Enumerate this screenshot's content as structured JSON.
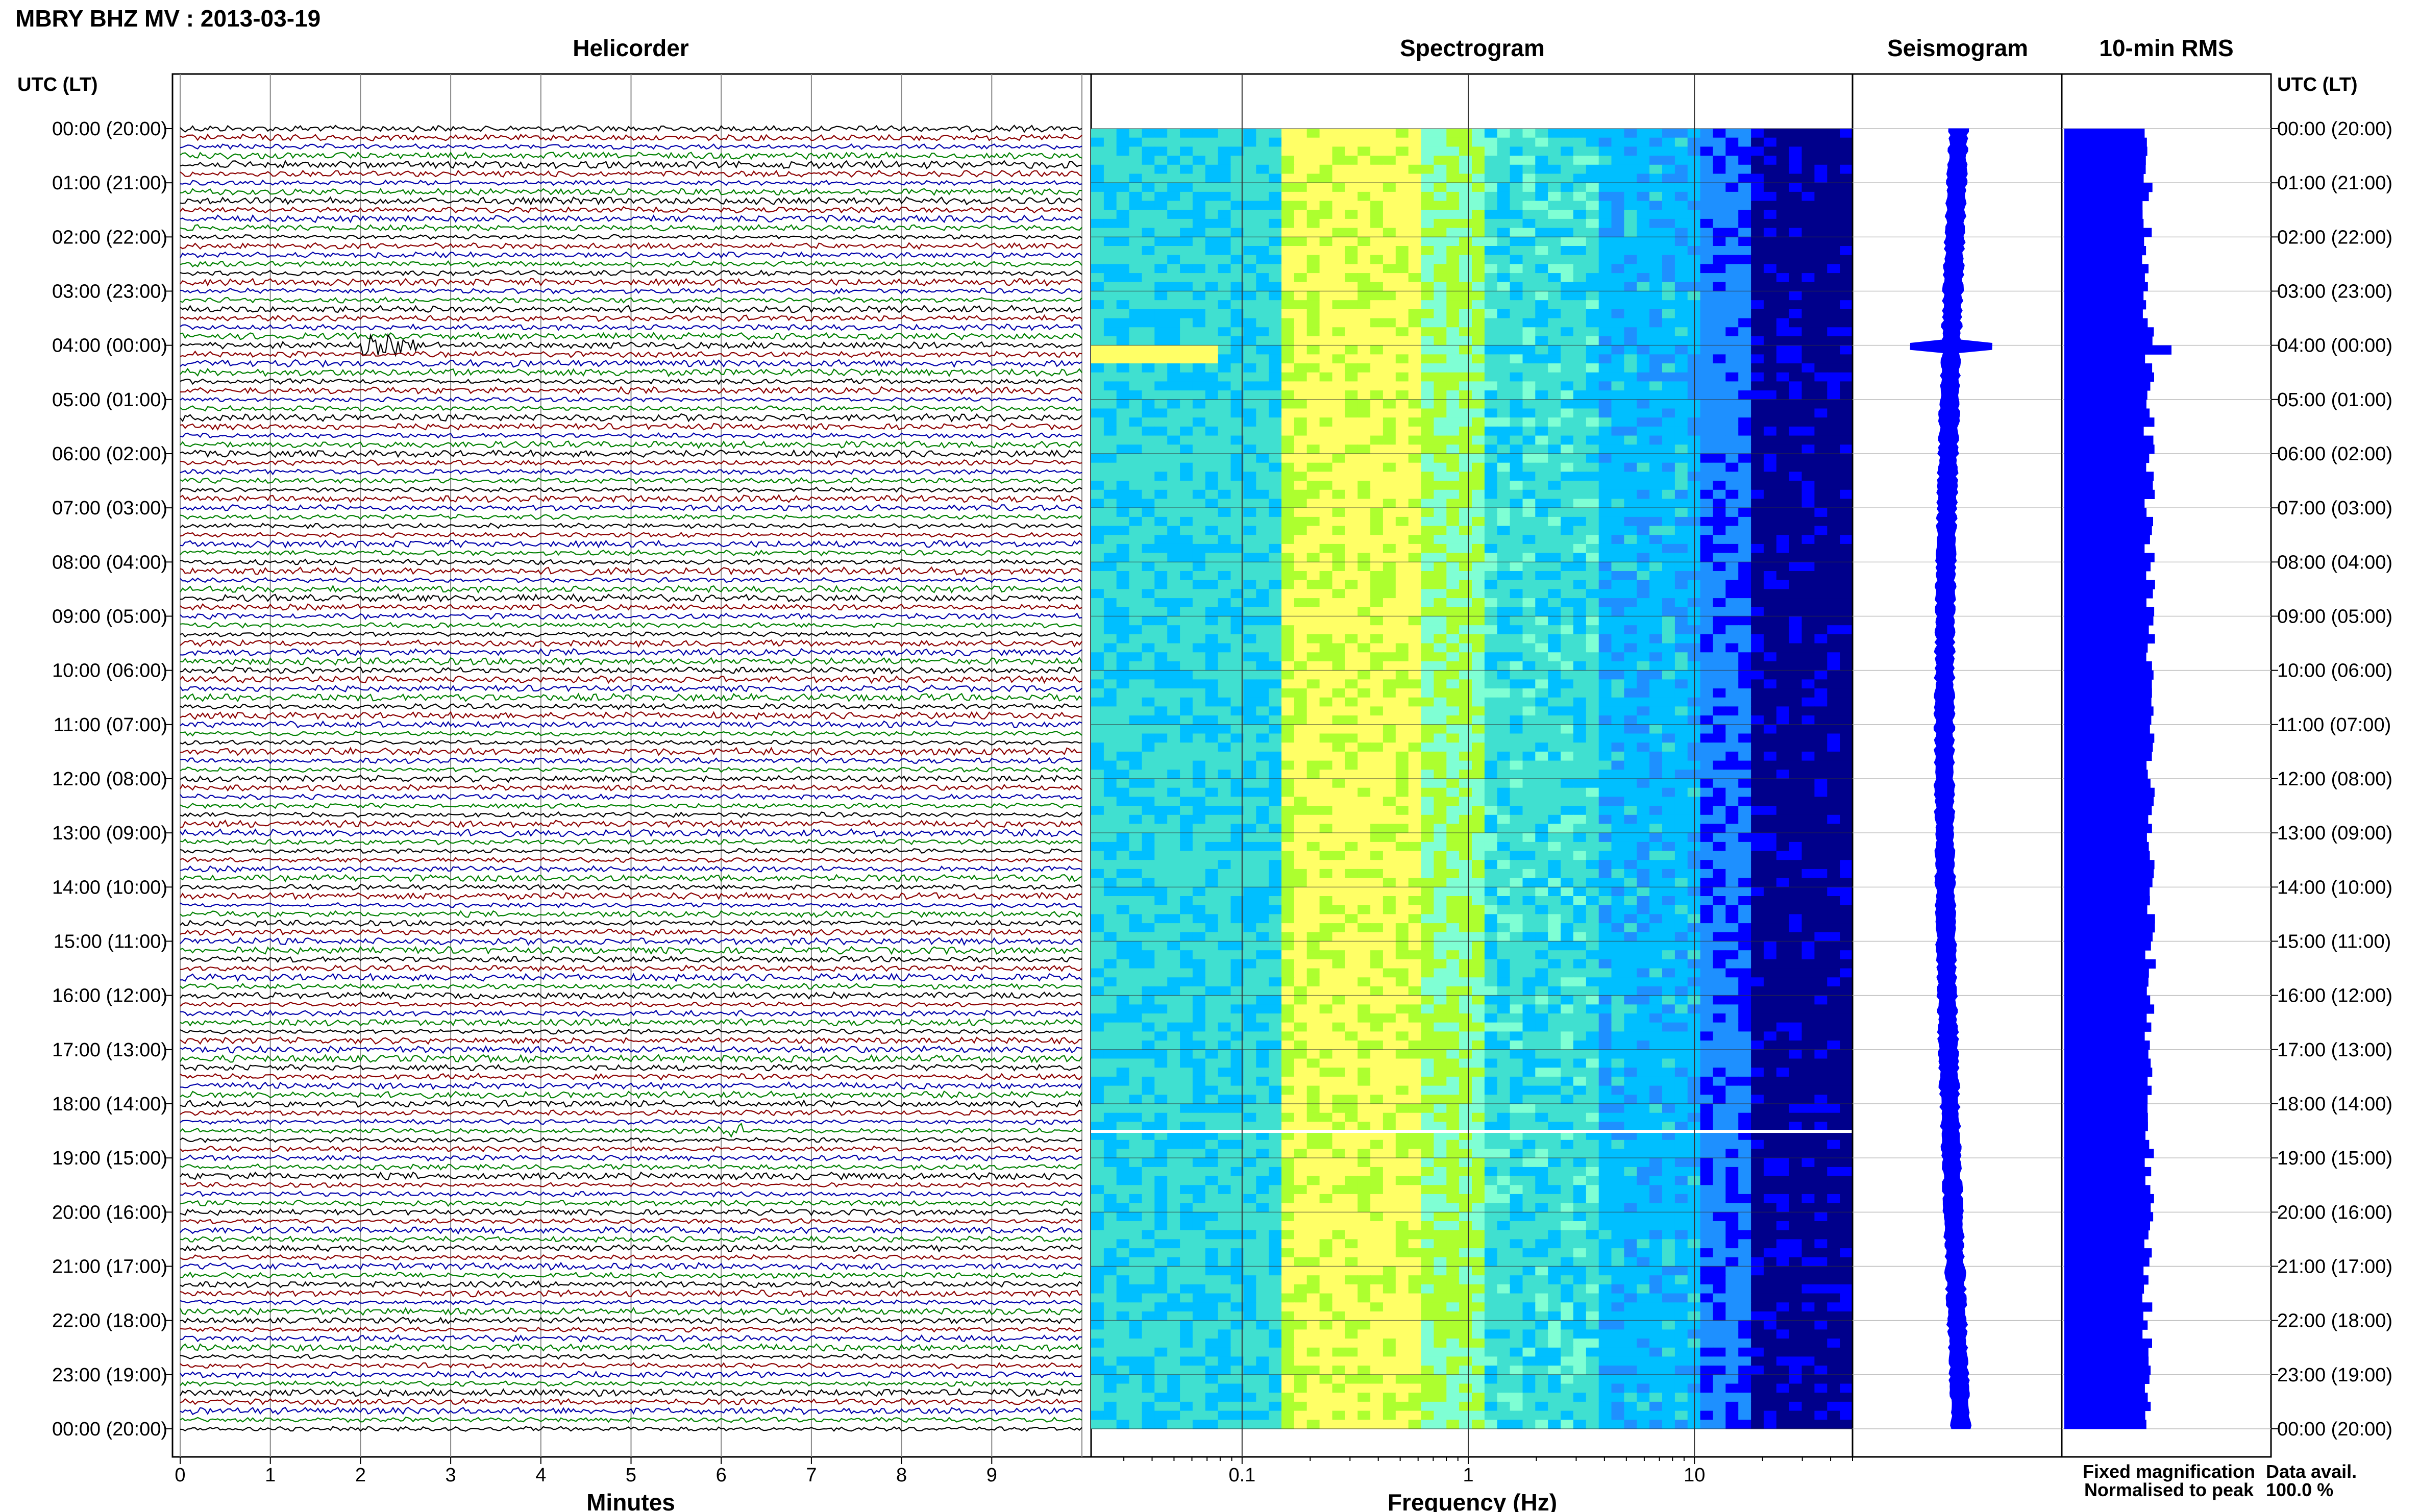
{
  "header": {
    "title": "MBRY BHZ MV : 2013-03-19",
    "panels": {
      "helicorder": "Helicorder",
      "spectrogram": "Spectrogram",
      "seismogram": "Seismogram",
      "rms": "10-min RMS"
    },
    "utc_label": "UTC (LT)"
  },
  "axes": {
    "minutes_label": "Minutes",
    "frequency_label": "Frequency (Hz)",
    "minute_ticks": [
      "0",
      "1",
      "2",
      "3",
      "4",
      "5",
      "6",
      "7",
      "8",
      "9"
    ],
    "freq_ticks": [
      "0.1",
      "1",
      "10"
    ]
  },
  "time_labels": [
    "00:00 (20:00)",
    "01:00 (21:00)",
    "02:00 (22:00)",
    "03:00 (23:00)",
    "04:00 (00:00)",
    "05:00 (01:00)",
    "06:00 (02:00)",
    "07:00 (03:00)",
    "08:00 (04:00)",
    "09:00 (05:00)",
    "10:00 (06:00)",
    "11:00 (07:00)",
    "12:00 (08:00)",
    "13:00 (09:00)",
    "14:00 (10:00)",
    "15:00 (11:00)",
    "16:00 (12:00)",
    "17:00 (13:00)",
    "18:00 (14:00)",
    "19:00 (15:00)",
    "20:00 (16:00)",
    "21:00 (17:00)",
    "22:00 (18:00)",
    "23:00 (19:00)",
    "00:00 (20:00)"
  ],
  "legend": {
    "fixed": "Fixed magnification",
    "normalised": "Normalised to peak",
    "fixed_color": "#0000ff",
    "normalised_color": "#ff0000"
  },
  "data_avail": {
    "label": "Data avail.",
    "value": "100.0 %"
  },
  "colors": {
    "trace_cycle": [
      "#000000",
      "#8b0000",
      "#0000aa",
      "#008000"
    ],
    "spectrogram_scale": [
      "#00008b",
      "#0000ff",
      "#1e90ff",
      "#00bfff",
      "#40e0d0",
      "#7fffd4",
      "#adff2f",
      "#ffff66"
    ],
    "seismogram": "#0000ff",
    "rms": "#0000ff"
  },
  "chart_data": [
    {
      "type": "line",
      "title": "Helicorder",
      "xlabel": "Minutes",
      "xlim": [
        0,
        10
      ],
      "rows_per_hour": 6,
      "hours": 24,
      "note_events": "small transient near 04:00 UTC and 18:30 UTC"
    },
    {
      "type": "heatmap",
      "title": "Spectrogram",
      "xlabel": "Frequency (Hz)",
      "x_scale": "log",
      "xlim": [
        0.02,
        50
      ],
      "gap_row_utc": "18:30"
    },
    {
      "type": "line",
      "title": "Seismogram",
      "hours": 24
    },
    {
      "type": "bar",
      "title": "10-min RMS",
      "hours": 24,
      "bins": 144,
      "peak_bin_utc": "04:00"
    }
  ]
}
